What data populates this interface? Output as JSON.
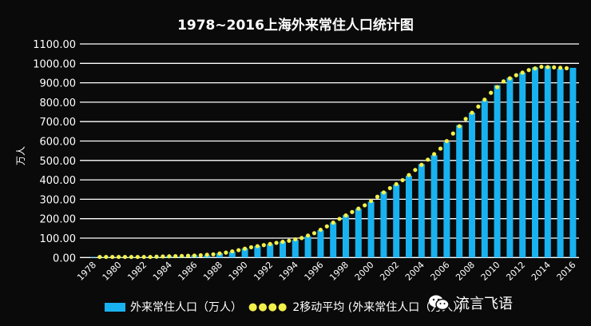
{
  "chart_data": {
    "type": "bar",
    "title": "1978~2016上海外来常住人口统计图",
    "ylabel": "万人",
    "xlabel": "",
    "ylim": [
      0,
      1100
    ],
    "yticks": [
      "0.00",
      "100.00",
      "200.00",
      "300.00",
      "400.00",
      "500.00",
      "600.00",
      "700.00",
      "800.00",
      "900.00",
      "1000.00",
      "1100.00"
    ],
    "grid": true,
    "legend_position": "bottom",
    "categories": [
      1978,
      1979,
      1980,
      1981,
      1982,
      1983,
      1984,
      1985,
      1986,
      1987,
      1988,
      1989,
      1990,
      1991,
      1992,
      1993,
      1994,
      1995,
      1996,
      1997,
      1998,
      1999,
      2000,
      2001,
      2002,
      2003,
      2004,
      2005,
      2006,
      2007,
      2008,
      2009,
      2010,
      2011,
      2012,
      2013,
      2014,
      2015,
      2016
    ],
    "xtick_labels": [
      "1978",
      "1980",
      "1982",
      "1984",
      "1986",
      "1988",
      "1990",
      "1992",
      "1994",
      "1996",
      "1998",
      "2000",
      "2002",
      "2004",
      "2006",
      "2008",
      "2010",
      "2012",
      "2014",
      "2016"
    ],
    "series": [
      {
        "name": "外来常住人口（万人）",
        "type": "bar",
        "color": "#19b2f0",
        "values": [
          3,
          3,
          3,
          3,
          3,
          3,
          8,
          6,
          12,
          11,
          22,
          29,
          47,
          59,
          69,
          82,
          91,
          110,
          141,
          180,
          218,
          251,
          287,
          339,
          376,
          421,
          481,
          527,
          595,
          682,
          746,
          809,
          888,
          926,
          952,
          979,
          986,
          973,
          977
        ]
      },
      {
        "name": "2移动平均 (外来常住人口（万人）)",
        "type": "dotted-line",
        "color": "#f2f04a",
        "x": [
          1979,
          1980,
          1981,
          1982,
          1983,
          1984,
          1985,
          1986,
          1987,
          1988,
          1989,
          1990,
          1991,
          1992,
          1993,
          1994,
          1995,
          1996,
          1997,
          1998,
          1999,
          2000,
          2001,
          2002,
          2003,
          2004,
          2005,
          2006,
          2007,
          2008,
          2009,
          2010,
          2011,
          2012,
          2013,
          2014,
          2015,
          2016
        ],
        "values": [
          3,
          3,
          3,
          3,
          3,
          5.5,
          7,
          9,
          11.5,
          16.5,
          25.5,
          38,
          53,
          64,
          75.5,
          86.5,
          100.5,
          125.5,
          160.5,
          199,
          234.5,
          269,
          313,
          357.5,
          398.5,
          451,
          504,
          561,
          638.5,
          714,
          777.5,
          848.5,
          907,
          939,
          965.5,
          982.5,
          979.5,
          975
        ]
      }
    ]
  },
  "watermark": {
    "text": "流言飞语",
    "icon": "wechat-icon"
  }
}
